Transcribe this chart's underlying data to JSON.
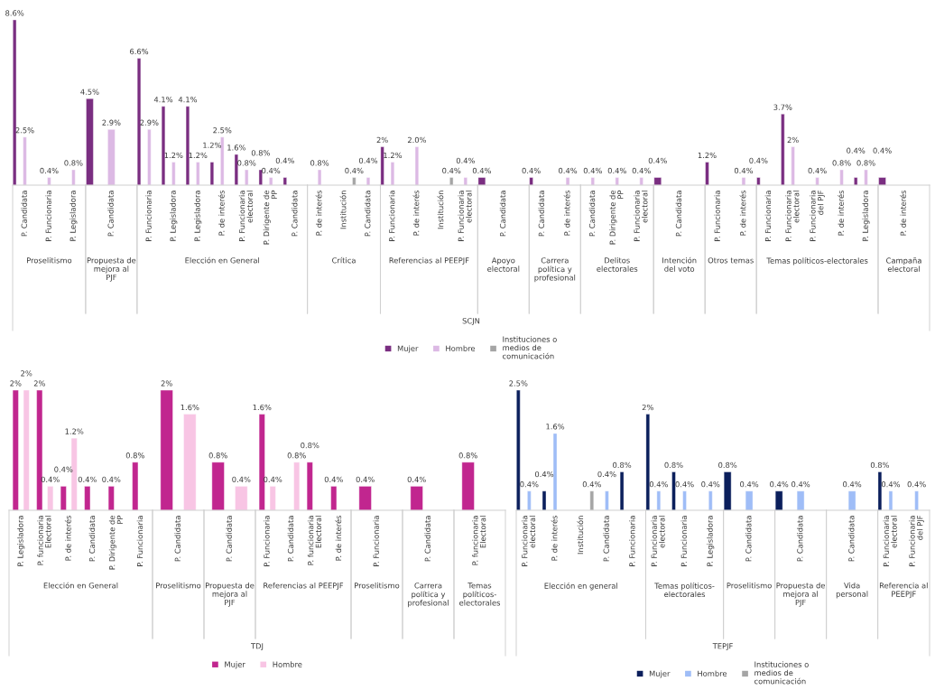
{
  "chart_data": [
    {
      "type": "bar",
      "xlabel": "Proselitismo",
      "annotations": [
        "SCJN"
      ],
      "legend": "bottom",
      "categories": [
        "P. Candidata",
        "P. Funcionaria",
        "P. Legisladora"
      ],
      "series": [
        {
          "name": "Mujer",
          "color": "#7a2e81",
          "values": [
            8.6,
            null,
            null
          ],
          "value_labels": [
            "8.6%",
            null,
            null
          ]
        },
        {
          "name": "Hombre",
          "color": "#dcb9e4",
          "values": [
            2.5,
            0.4,
            0.8
          ],
          "value_labels": [
            "2.5%",
            "0.4%",
            "0.8%"
          ]
        },
        {
          "name": "Instituciones o medios de comunicación",
          "color": "#a5a5a5",
          "values": [
            null,
            null,
            null
          ]
        }
      ]
    },
    {
      "type": "bar",
      "xlabel": "Propuesta de mejora al PJF",
      "categories": [
        "P. Candidata"
      ],
      "series": [
        {
          "color": "#7a2e81",
          "values": [
            4.5
          ],
          "value_labels": [
            "4.5%"
          ]
        },
        {
          "color": "#dcb9e4",
          "values": [
            2.9
          ],
          "value_labels": [
            "2.9%"
          ]
        },
        {
          "color": "#a5a5a5",
          "values": [
            null
          ]
        }
      ]
    },
    {
      "type": "bar",
      "xlabel": "Elección en General",
      "categories": [
        "P. Funcionaria",
        "P. Legisladora",
        "P. Legisladora",
        "P. de interés",
        "P. Funcionaria electoral",
        "P. Dirigente de PP",
        "P. Candidata"
      ],
      "series": [
        {
          "color": "#7a2e81",
          "values": [
            6.6,
            4.1,
            4.1,
            1.2,
            1.6,
            0.8,
            0.4
          ],
          "value_labels": [
            "6.6%",
            "4.1%",
            "4.1%",
            "1.2%",
            "1.6%",
            "0.8%",
            "0.4%"
          ]
        },
        {
          "color": "#dcb9e4",
          "values": [
            2.9,
            1.2,
            1.2,
            2.5,
            0.8,
            0.4,
            null
          ],
          "value_labels": [
            "2.9%",
            "1.2%",
            "1.2%",
            "2.5%",
            "0.8%",
            "0.4%",
            null
          ]
        },
        {
          "color": "#a5a5a5",
          "values": [
            null,
            null,
            null,
            null,
            null,
            null,
            null
          ]
        }
      ]
    },
    {
      "type": "bar",
      "xlabel": "Crítica",
      "categories": [
        "P. de interés",
        "Institución",
        "P. Candidata"
      ],
      "series": [
        {
          "color": "#7a2e81",
          "values": [
            null,
            null,
            null
          ]
        },
        {
          "color": "#dcb9e4",
          "values": [
            0.8,
            null,
            0.4
          ],
          "value_labels": [
            "0.8%",
            null,
            "0.4%"
          ]
        },
        {
          "color": "#a5a5a5",
          "values": [
            null,
            0.4,
            null
          ],
          "value_labels": [
            null,
            "0.4%",
            null
          ]
        }
      ]
    },
    {
      "type": "bar",
      "xlabel": "Referencias al PEEPJF",
      "categories": [
        "P. Funcionaria",
        "P. de interés",
        "Institución",
        "P. Funcionaria electoral"
      ],
      "series": [
        {
          "color": "#7a2e81",
          "values": [
            2.0,
            null,
            null,
            null
          ],
          "value_labels": [
            "2%",
            null,
            null,
            null
          ]
        },
        {
          "color": "#dcb9e4",
          "values": [
            1.2,
            2.0,
            null,
            0.4
          ],
          "value_labels": [
            "1.2%",
            "2.0%",
            null,
            "0.4%"
          ]
        },
        {
          "color": "#a5a5a5",
          "values": [
            null,
            null,
            0.4,
            null
          ],
          "value_labels": [
            null,
            null,
            "0.4%",
            null
          ]
        }
      ]
    },
    {
      "type": "bar",
      "xlabel": "Apoyo electoral",
      "categories": [
        "P. Candidata"
      ],
      "series": [
        {
          "color": "#7a2e81",
          "values": [
            0.4
          ],
          "value_labels": [
            "0.4%"
          ]
        },
        {
          "color": "#dcb9e4",
          "values": [
            null
          ]
        },
        {
          "color": "#a5a5a5",
          "values": [
            null
          ]
        }
      ]
    },
    {
      "type": "bar",
      "xlabel": "Carrera política y profesional",
      "categories": [
        "P. Candidata",
        "P. de interés"
      ],
      "series": [
        {
          "color": "#7a2e81",
          "values": [
            0.4,
            null
          ],
          "value_labels": [
            "0.4%",
            null
          ]
        },
        {
          "color": "#dcb9e4",
          "values": [
            null,
            0.4
          ],
          "value_labels": [
            null,
            "0.4%"
          ]
        },
        {
          "color": "#a5a5a5",
          "values": [
            null,
            null
          ]
        }
      ]
    },
    {
      "type": "bar",
      "xlabel": "Delitos electorales",
      "categories": [
        "P. Candidata",
        "P. Dirigente de PP",
        "P. Funcionaria electoral"
      ],
      "series": [
        {
          "color": "#7a2e81",
          "values": [
            null,
            null,
            null
          ]
        },
        {
          "color": "#dcb9e4",
          "values": [
            0.4,
            0.4,
            0.4
          ],
          "value_labels": [
            "0.4%",
            "0.4%",
            "0.4%"
          ]
        },
        {
          "color": "#a5a5a5",
          "values": [
            null,
            null,
            null
          ]
        }
      ]
    },
    {
      "type": "bar",
      "xlabel": "Intención del voto",
      "categories": [
        "P. Candidata"
      ],
      "series": [
        {
          "color": "#7a2e81",
          "values": [
            0.4
          ],
          "value_labels": [
            "0.4%"
          ]
        },
        {
          "color": "#dcb9e4",
          "values": [
            null
          ]
        },
        {
          "color": "#a5a5a5",
          "values": [
            null
          ]
        }
      ]
    },
    {
      "type": "bar",
      "xlabel": "Otros temas",
      "categories": [
        "P. Funcionaria",
        "P. de interés"
      ],
      "series": [
        {
          "color": "#7a2e81",
          "values": [
            1.2,
            null
          ],
          "value_labels": [
            "1.2%",
            null
          ]
        },
        {
          "color": "#dcb9e4",
          "values": [
            null,
            0.4
          ],
          "value_labels": [
            null,
            "0.4%"
          ]
        },
        {
          "color": "#a5a5a5",
          "values": [
            null,
            null
          ]
        }
      ]
    },
    {
      "type": "bar",
      "xlabel": "Temas políticos-electorales",
      "categories": [
        "P. Funcionaria",
        "P. Funcionaria electoral",
        "P. Funcionaria del PJF",
        "P. de interés",
        "P. Legisladora"
      ],
      "series": [
        {
          "color": "#7a2e81",
          "values": [
            0.4,
            3.7,
            null,
            null,
            0.4
          ],
          "value_labels": [
            "0.4%",
            "3.7%",
            null,
            null,
            "0.4%"
          ]
        },
        {
          "color": "#dcb9e4",
          "values": [
            null,
            2.0,
            0.4,
            0.8,
            0.8
          ],
          "value_labels": [
            null,
            "2%",
            "0.4%",
            "0.8%",
            "0.8%"
          ]
        },
        {
          "color": "#a5a5a5",
          "values": [
            null,
            null,
            null,
            null,
            null
          ]
        }
      ]
    },
    {
      "type": "bar",
      "xlabel": "Campaña electoral",
      "categories": [
        "P. de interés"
      ],
      "series": [
        {
          "color": "#7a2e81",
          "values": [
            0.4
          ],
          "value_labels": [
            "0.4%"
          ]
        },
        {
          "color": "#dcb9e4",
          "values": [
            null
          ]
        },
        {
          "color": "#a5a5a5",
          "values": [
            null
          ]
        }
      ]
    },
    {
      "type": "bar",
      "xlabel": "Elección en General",
      "annotations": [
        "TDJ"
      ],
      "legend": "bottom",
      "categories": [
        "P. Legisladora",
        "P. funcionaria Electoral",
        "P. de interés",
        "P. Candidata",
        "P. Dirigente de PP",
        "P. Funcionaria"
      ],
      "series": [
        {
          "name": "Mujer",
          "color": "#c1268f",
          "values": [
            2.0,
            2.0,
            0.4,
            0.4,
            0.4,
            0.8
          ],
          "value_labels": [
            "2%",
            "2%",
            "0.4%",
            "0.4%",
            "0.4%",
            "0.8%"
          ]
        },
        {
          "name": "Hombre",
          "color": "#f8c5e4",
          "values": [
            2.0,
            0.4,
            1.2,
            null,
            null,
            null
          ],
          "value_labels": [
            "2%",
            "0.4%",
            "1.2%",
            null,
            null,
            null
          ]
        }
      ]
    },
    {
      "type": "bar",
      "xlabel": "Proselitismo",
      "categories": [
        "P. Candidata"
      ],
      "series": [
        {
          "color": "#c1268f",
          "values": [
            2.0
          ],
          "value_labels": [
            "2%"
          ]
        },
        {
          "color": "#f8c5e4",
          "values": [
            1.6
          ],
          "value_labels": [
            "1.6%"
          ]
        }
      ]
    },
    {
      "type": "bar",
      "xlabel": "Propuesta de mejora al PJF",
      "categories": [
        "P. Candidata"
      ],
      "series": [
        {
          "color": "#c1268f",
          "values": [
            0.8
          ],
          "value_labels": [
            "0.8%"
          ]
        },
        {
          "color": "#f8c5e4",
          "values": [
            0.4
          ],
          "value_labels": [
            "0.4%"
          ]
        }
      ]
    },
    {
      "type": "bar",
      "xlabel": "Referencias al PEEPJF",
      "categories": [
        "P. Funcionaria",
        "P. Candidata",
        "P. funcionaria Electoral",
        "P. de interés"
      ],
      "series": [
        {
          "color": "#c1268f",
          "values": [
            1.6,
            null,
            0.8,
            0.4
          ],
          "value_labels": [
            "1.6%",
            null,
            "0.8%",
            "0.4%"
          ]
        },
        {
          "color": "#f8c5e4",
          "values": [
            0.4,
            0.8,
            null,
            null
          ],
          "value_labels": [
            "0.4%",
            "0.8%",
            null,
            null
          ]
        }
      ]
    },
    {
      "type": "bar",
      "xlabel": "Proselitismo",
      "categories": [
        "P. Funcionaria"
      ],
      "series": [
        {
          "color": "#c1268f",
          "values": [
            0.4
          ],
          "value_labels": [
            "0.4%"
          ]
        },
        {
          "color": "#f8c5e4",
          "values": [
            null
          ]
        }
      ]
    },
    {
      "type": "bar",
      "xlabel": "Carrera política y profesional",
      "categories": [
        "P. Candidata"
      ],
      "series": [
        {
          "color": "#c1268f",
          "values": [
            0.4
          ],
          "value_labels": [
            "0.4%"
          ]
        },
        {
          "color": "#f8c5e4",
          "values": [
            null
          ]
        }
      ]
    },
    {
      "type": "bar",
      "xlabel": "Temas políticos-electorales",
      "categories": [
        "P. funcionaria Electoral"
      ],
      "series": [
        {
          "color": "#c1268f",
          "values": [
            0.8
          ],
          "value_labels": [
            "0.8%"
          ]
        },
        {
          "color": "#f8c5e4",
          "values": [
            null
          ]
        }
      ]
    },
    {
      "type": "bar",
      "xlabel": "Elección en general",
      "annotations": [
        "TEPJF"
      ],
      "legend": "bottom",
      "categories": [
        "P. Funcionaria electoral",
        "P. de interés",
        "Institución",
        "P. Candidata",
        "P. Funcionaria"
      ],
      "series": [
        {
          "name": "Mujer",
          "color": "#0b1f5c",
          "values": [
            2.5,
            0.4,
            null,
            null,
            0.8
          ],
          "value_labels": [
            "2.5%",
            "0.4%",
            null,
            null,
            "0.8%"
          ]
        },
        {
          "name": "Hombre",
          "color": "#9fbdf7",
          "values": [
            0.4,
            1.6,
            null,
            0.4,
            null
          ],
          "value_labels": [
            "0.4%",
            "1.6%",
            null,
            "0.4%",
            null
          ]
        },
        {
          "name": "Instituciones o medios de comunicación",
          "color": "#a5a5a5",
          "values": [
            null,
            null,
            0.4,
            null,
            null
          ],
          "value_labels": [
            null,
            null,
            "0.4%",
            null,
            null
          ]
        }
      ]
    },
    {
      "type": "bar",
      "xlabel": "Temas políticos-electorales",
      "categories": [
        "P. Funcionaria electoral",
        "P. Funcionaria",
        "P. Legisladora"
      ],
      "series": [
        {
          "color": "#0b1f5c",
          "values": [
            2.0,
            0.8,
            null
          ],
          "value_labels": [
            "2%",
            "0.8%",
            null
          ]
        },
        {
          "color": "#9fbdf7",
          "values": [
            0.4,
            0.4,
            0.4
          ],
          "value_labels": [
            "0.4%",
            "0.4%",
            "0.4%"
          ]
        },
        {
          "color": "#a5a5a5",
          "values": [
            null,
            null,
            null
          ]
        }
      ]
    },
    {
      "type": "bar",
      "xlabel": "Proselitismo",
      "categories": [
        "P. Candidata"
      ],
      "series": [
        {
          "color": "#0b1f5c",
          "values": [
            0.8
          ],
          "value_labels": [
            "0.8%"
          ]
        },
        {
          "color": "#9fbdf7",
          "values": [
            0.4
          ],
          "value_labels": [
            "0.4%"
          ]
        },
        {
          "color": "#a5a5a5",
          "values": [
            null
          ]
        }
      ]
    },
    {
      "type": "bar",
      "xlabel": "Propuesta de mejora al PJF",
      "categories": [
        "P. Candidata"
      ],
      "series": [
        {
          "color": "#0b1f5c",
          "values": [
            0.4
          ],
          "value_labels": [
            "0.4%"
          ]
        },
        {
          "color": "#9fbdf7",
          "values": [
            0.4
          ],
          "value_labels": [
            "0.4%"
          ]
        },
        {
          "color": "#a5a5a5",
          "values": [
            null
          ]
        }
      ]
    },
    {
      "type": "bar",
      "xlabel": "Vida personal",
      "categories": [
        "P. Candidata"
      ],
      "series": [
        {
          "color": "#0b1f5c",
          "values": [
            null
          ]
        },
        {
          "color": "#9fbdf7",
          "values": [
            0.4
          ],
          "value_labels": [
            "0.4%"
          ]
        },
        {
          "color": "#a5a5a5",
          "values": [
            null
          ]
        }
      ]
    },
    {
      "type": "bar",
      "xlabel": "Referencia al PEEPJF",
      "categories": [
        "P. Funcionaria electoral",
        "P. Funcionaria del PJF"
      ],
      "series": [
        {
          "color": "#0b1f5c",
          "values": [
            0.8,
            null
          ],
          "value_labels": [
            "0.8%",
            null
          ]
        },
        {
          "color": "#9fbdf7",
          "values": [
            0.4,
            0.4
          ],
          "value_labels": [
            "0.4%",
            "0.4%"
          ]
        },
        {
          "color": "#a5a5a5",
          "values": [
            null,
            null
          ]
        }
      ]
    }
  ]
}
